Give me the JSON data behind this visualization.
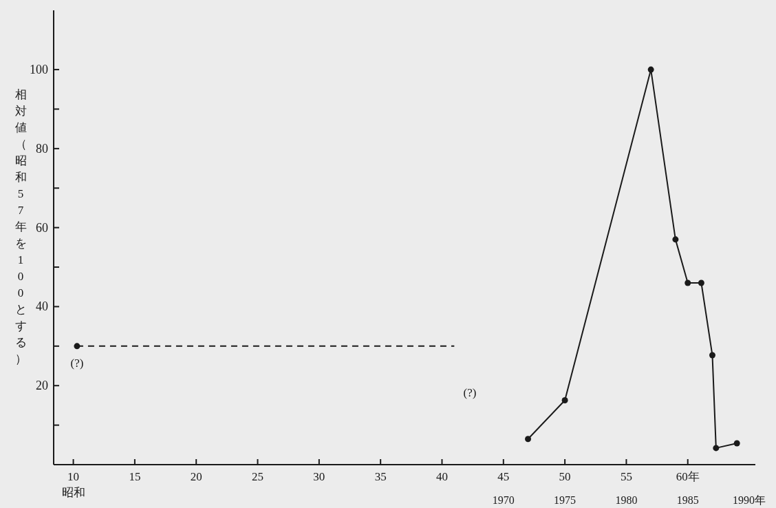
{
  "chart_data": {
    "type": "line",
    "ylabel": "相対値（昭和57年を100とする）",
    "xlabel": "昭和",
    "xlim": [
      8.4,
      65.5
    ],
    "xticks": [
      10,
      15,
      20,
      25,
      30,
      35,
      40,
      45,
      50,
      55,
      {
        "value": 60,
        "label": "60年"
      }
    ],
    "x2lim": [
      1933.4,
      1990.5
    ],
    "x2ticks": [
      1970,
      1975,
      1980,
      1985,
      {
        "value": 1990,
        "label": "1990年"
      }
    ],
    "ylim": [
      0,
      115
    ],
    "yticks": [
      {
        "value": 10,
        "label": null
      },
      20,
      {
        "value": 30,
        "label": null
      },
      40,
      {
        "value": 50,
        "label": null
      },
      60,
      {
        "value": 70,
        "label": null
      },
      80,
      {
        "value": 90,
        "label": null
      },
      100
    ],
    "series": [
      {
        "type": "scatter",
        "color": "#1a1a1a",
        "x": [
          10.3
        ],
        "values": [
          30
        ]
      },
      {
        "line_style": "dashed",
        "marker": "none",
        "color": "#1a1a1a",
        "x": [
          10.3,
          41
        ],
        "values": [
          30,
          30
        ]
      },
      {
        "marker": "circle",
        "color": "#1a1a1a",
        "x": [
          47,
          50,
          57,
          59,
          60,
          61.1,
          62,
          62.3,
          64
        ],
        "values": [
          6.5,
          16.3,
          100,
          57,
          46,
          46,
          27.7,
          4.2,
          5.4
        ]
      }
    ],
    "annotations": [
      {
        "text": "(?)",
        "x": 10.3,
        "y": 30
      },
      "(?)"
    ]
  }
}
